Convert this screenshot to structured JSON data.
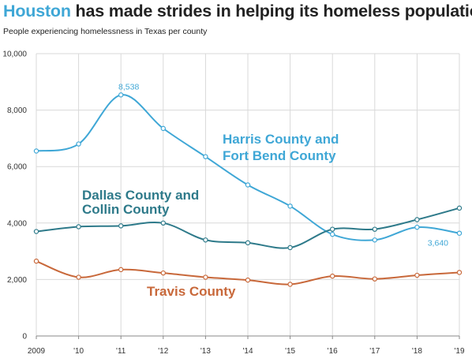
{
  "header": {
    "title_highlight": "Houston",
    "title_rest": " has made strides in helping its homeless population",
    "subtitle": "People experiencing homelessness in Texas per county"
  },
  "chart_data": {
    "type": "line",
    "title": "Houston has made strides in helping its homeless population",
    "subtitle": "People experiencing homelessness in Texas per county",
    "categories": [
      "2009",
      "'10",
      "'11",
      "'12",
      "'13",
      "'14",
      "'15",
      "'16",
      "'17",
      "'18",
      "'19"
    ],
    "ylim": [
      0,
      10000
    ],
    "yticks": [
      0,
      2000,
      4000,
      6000,
      8000,
      10000
    ],
    "ytick_labels": [
      "0",
      "2,000",
      "4,000",
      "6,000",
      "8,000",
      "10,000"
    ],
    "grid": true,
    "series": [
      {
        "name": "Harris County and Fort Bend County",
        "label_lines": [
          "Harris County and",
          "Fort Bend County"
        ],
        "color": "#3fa7d6",
        "values": [
          6550,
          6800,
          8538,
          7350,
          6350,
          5350,
          4600,
          3600,
          3400,
          3850,
          3640
        ]
      },
      {
        "name": "Dallas County and Collin County",
        "label_lines": [
          "Dallas County and",
          "Collin County"
        ],
        "color": "#2e7a8a",
        "values": [
          3700,
          3870,
          3900,
          4000,
          3400,
          3300,
          3130,
          3780,
          3780,
          4120,
          4530
        ]
      },
      {
        "name": "Travis County",
        "label_lines": [
          "Travis County"
        ],
        "color": "#c8683a",
        "values": [
          2650,
          2080,
          2350,
          2230,
          2080,
          1980,
          1830,
          2120,
          2020,
          2150,
          2250
        ]
      }
    ],
    "annotations": [
      {
        "series": 0,
        "index": 2,
        "text": "8,538"
      },
      {
        "series": 0,
        "index": 10,
        "text": "3,640"
      }
    ]
  }
}
